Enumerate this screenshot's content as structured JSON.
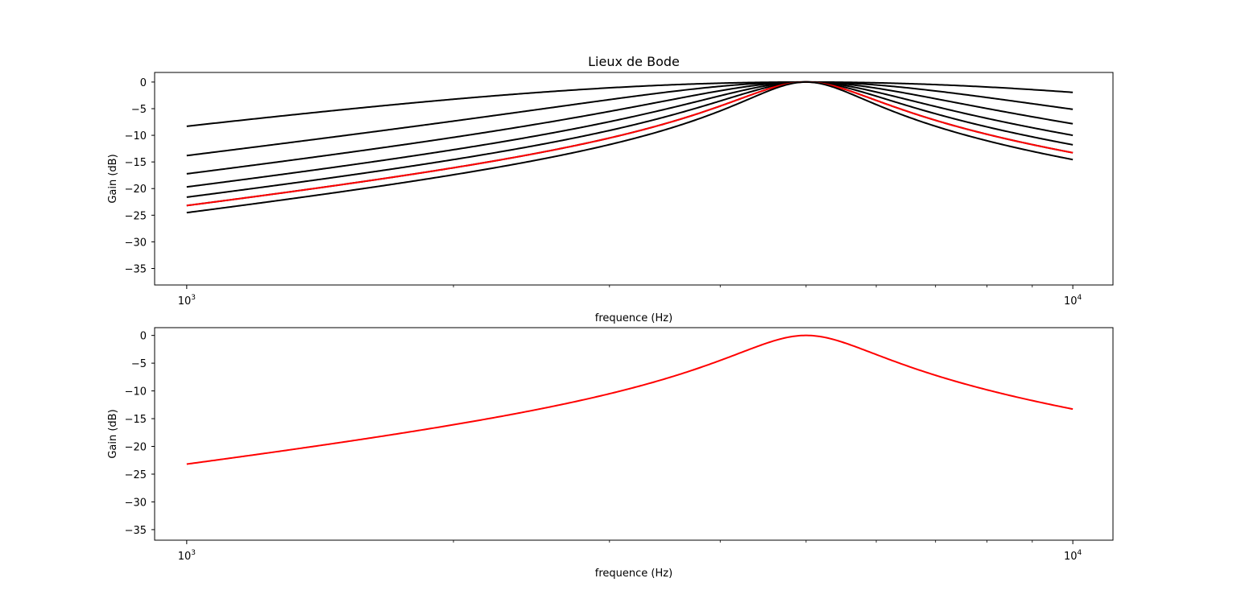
{
  "chart_data": [
    {
      "type": "line",
      "title": "Lieux de Bode",
      "xlabel": "frequence (Hz)",
      "ylabel": "Gain (dB)",
      "xscale": "log",
      "xlim": [
        920,
        11100
      ],
      "ylim": [
        -38.1,
        1.8
      ],
      "yticks": [
        0,
        -5,
        -10,
        -15,
        -20,
        -25,
        -30,
        -35
      ],
      "ytick_labels": [
        "0",
        "−5",
        "−10",
        "−15",
        "−20",
        "−25",
        "−30",
        "−35"
      ],
      "xticks": [
        1000,
        10000
      ],
      "xtick_labels": [
        {
          "base": "10",
          "exp": "3"
        },
        {
          "base": "10",
          "exp": "4"
        }
      ],
      "grid": false,
      "resonance_frequency": 5000,
      "frequency_range": [
        1000,
        10000
      ],
      "series": [
        {
          "color": "#000000",
          "Q": 0.5
        },
        {
          "color": "#000000",
          "Q": 1
        },
        {
          "color": "#000000",
          "Q": 1.5
        },
        {
          "color": "#000000",
          "Q": 2
        },
        {
          "color": "#000000",
          "Q": 2.5
        },
        {
          "color": "#000000",
          "Q": 3
        },
        {
          "color": "#ff0000",
          "Q": 3
        },
        {
          "color": "#000000",
          "Q": 3.5
        }
      ]
    },
    {
      "type": "line",
      "title": "",
      "xlabel": "frequence (Hz)",
      "ylabel": "Gain (dB)",
      "xscale": "log",
      "xlim": [
        920,
        11100
      ],
      "ylim": [
        -36.9,
        1.4
      ],
      "yticks": [
        0,
        -5,
        -10,
        -15,
        -20,
        -25,
        -30,
        -35
      ],
      "ytick_labels": [
        "0",
        "−5",
        "−10",
        "−15",
        "−20",
        "−25",
        "−30",
        "−35"
      ],
      "xticks": [
        1000,
        10000
      ],
      "xtick_labels": [
        {
          "base": "10",
          "exp": "3"
        },
        {
          "base": "10",
          "exp": "4"
        }
      ],
      "grid": false,
      "resonance_frequency": 5000,
      "frequency_range": [
        1000,
        10000
      ],
      "series": [
        {
          "color": "#ff0000",
          "Q": 3
        }
      ]
    }
  ]
}
